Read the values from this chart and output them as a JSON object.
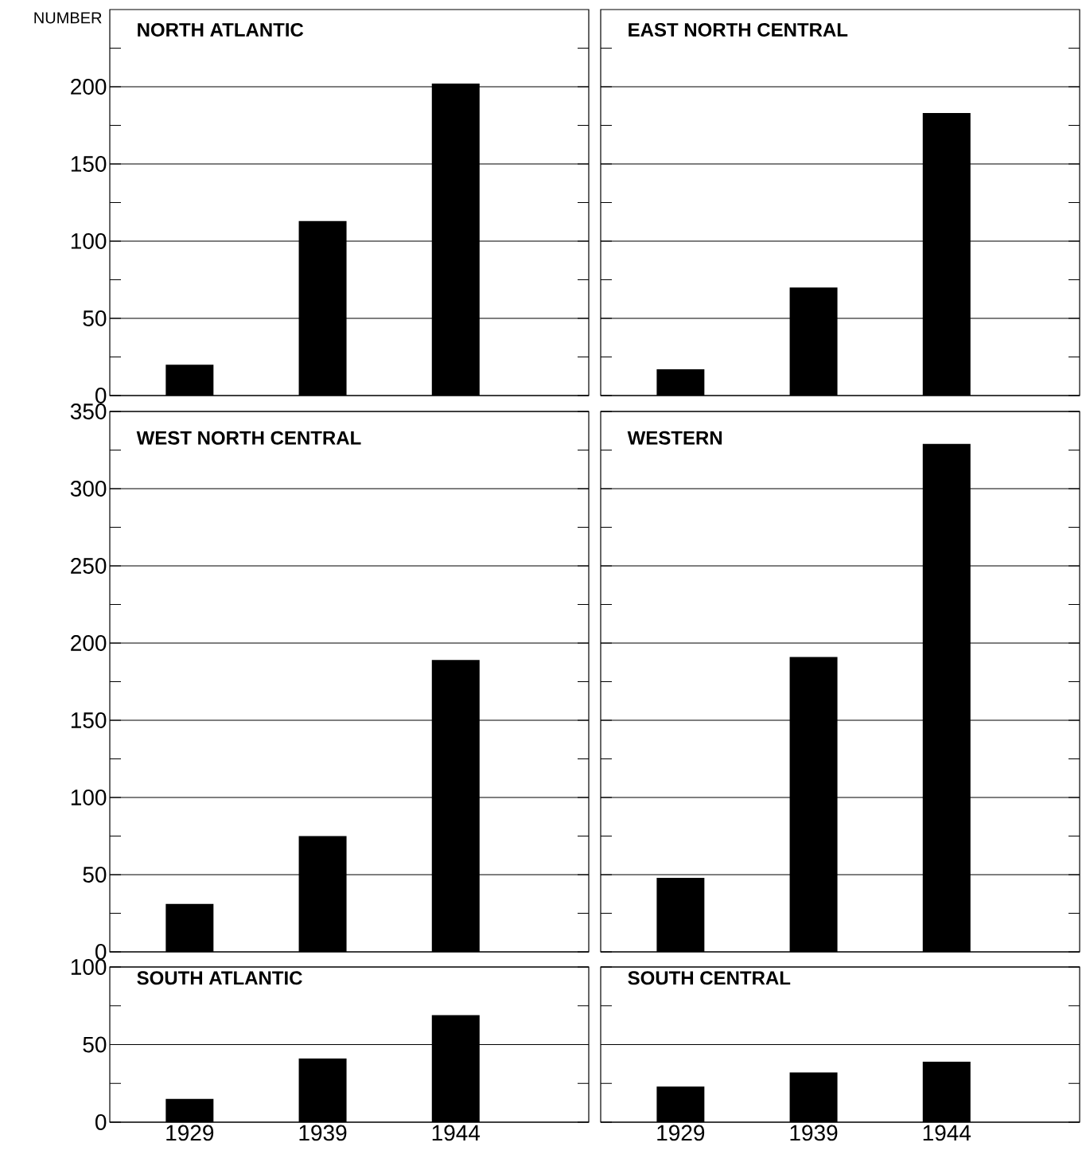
{
  "chart_data": [
    {
      "type": "bar",
      "title": "NORTH ATLANTIC",
      "ylabel": "NUMBER",
      "categories": [
        "1929",
        "1939",
        "1944"
      ],
      "values": [
        20,
        113,
        202
      ],
      "color": "#000000",
      "ylim": [
        0,
        250
      ],
      "yticks": [
        0,
        {
          "value": 25,
          "label": null
        },
        50,
        {
          "value": 75,
          "label": null
        },
        100,
        {
          "value": 125,
          "label": null
        },
        150,
        {
          "value": 175,
          "label": null
        },
        200,
        {
          "value": 225,
          "label": null
        }
      ],
      "grid": "y",
      "tick_labels": "y"
    },
    {
      "type": "bar",
      "title": "EAST NORTH CENTRAL",
      "categories": [
        "1929",
        "1939",
        "1944"
      ],
      "values": [
        17,
        70,
        183
      ],
      "color": "#000000",
      "ylim": [
        0,
        250
      ],
      "yticks": [
        0,
        {
          "value": 25,
          "label": null
        },
        50,
        {
          "value": 75,
          "label": null
        },
        100,
        {
          "value": 125,
          "label": null
        },
        150,
        {
          "value": 175,
          "label": null
        },
        200,
        {
          "value": 225,
          "label": null
        }
      ],
      "grid": "y",
      "tick_labels": false
    },
    {
      "type": "bar",
      "title": "WEST NORTH CENTRAL",
      "categories": [
        "1929",
        "1939",
        "1944"
      ],
      "values": [
        31,
        75,
        189
      ],
      "color": "#000000",
      "ylim": [
        0,
        350
      ],
      "yticks": [
        0,
        {
          "value": 25,
          "label": null
        },
        50,
        {
          "value": 75,
          "label": null
        },
        100,
        {
          "value": 125,
          "label": null
        },
        150,
        {
          "value": 175,
          "label": null
        },
        200,
        {
          "value": 225,
          "label": null
        },
        250,
        {
          "value": 275,
          "label": null
        },
        300,
        {
          "value": 325,
          "label": null
        },
        350
      ],
      "grid": "y",
      "tick_labels": "y"
    },
    {
      "type": "bar",
      "title": "WESTERN",
      "categories": [
        "1929",
        "1939",
        "1944"
      ],
      "values": [
        48,
        191,
        329
      ],
      "color": "#000000",
      "ylim": [
        0,
        350
      ],
      "yticks": [
        0,
        {
          "value": 25,
          "label": null
        },
        50,
        {
          "value": 75,
          "label": null
        },
        100,
        {
          "value": 125,
          "label": null
        },
        150,
        {
          "value": 175,
          "label": null
        },
        200,
        {
          "value": 225,
          "label": null
        },
        250,
        {
          "value": 275,
          "label": null
        },
        300,
        {
          "value": 325,
          "label": null
        },
        350
      ],
      "grid": "y",
      "tick_labels": false
    },
    {
      "type": "bar",
      "title": "SOUTH ATLANTIC",
      "categories": [
        "1929",
        "1939",
        "1944"
      ],
      "values": [
        15,
        41,
        69
      ],
      "color": "#000000",
      "ylim": [
        0,
        100
      ],
      "yticks": [
        0,
        {
          "value": 25,
          "label": null
        },
        50,
        {
          "value": 75,
          "label": null
        },
        100
      ],
      "grid": "y"
    },
    {
      "type": "bar",
      "title": "SOUTH CENTRAL",
      "categories": [
        "1929",
        "1939",
        "1944"
      ],
      "values": [
        23,
        32,
        39
      ],
      "color": "#000000",
      "ylim": [
        0,
        100
      ],
      "yticks": [
        0,
        {
          "value": 25,
          "label": null
        },
        50,
        {
          "value": 75,
          "label": null
        },
        100
      ],
      "grid": "y",
      "tick_labels": "x"
    }
  ]
}
